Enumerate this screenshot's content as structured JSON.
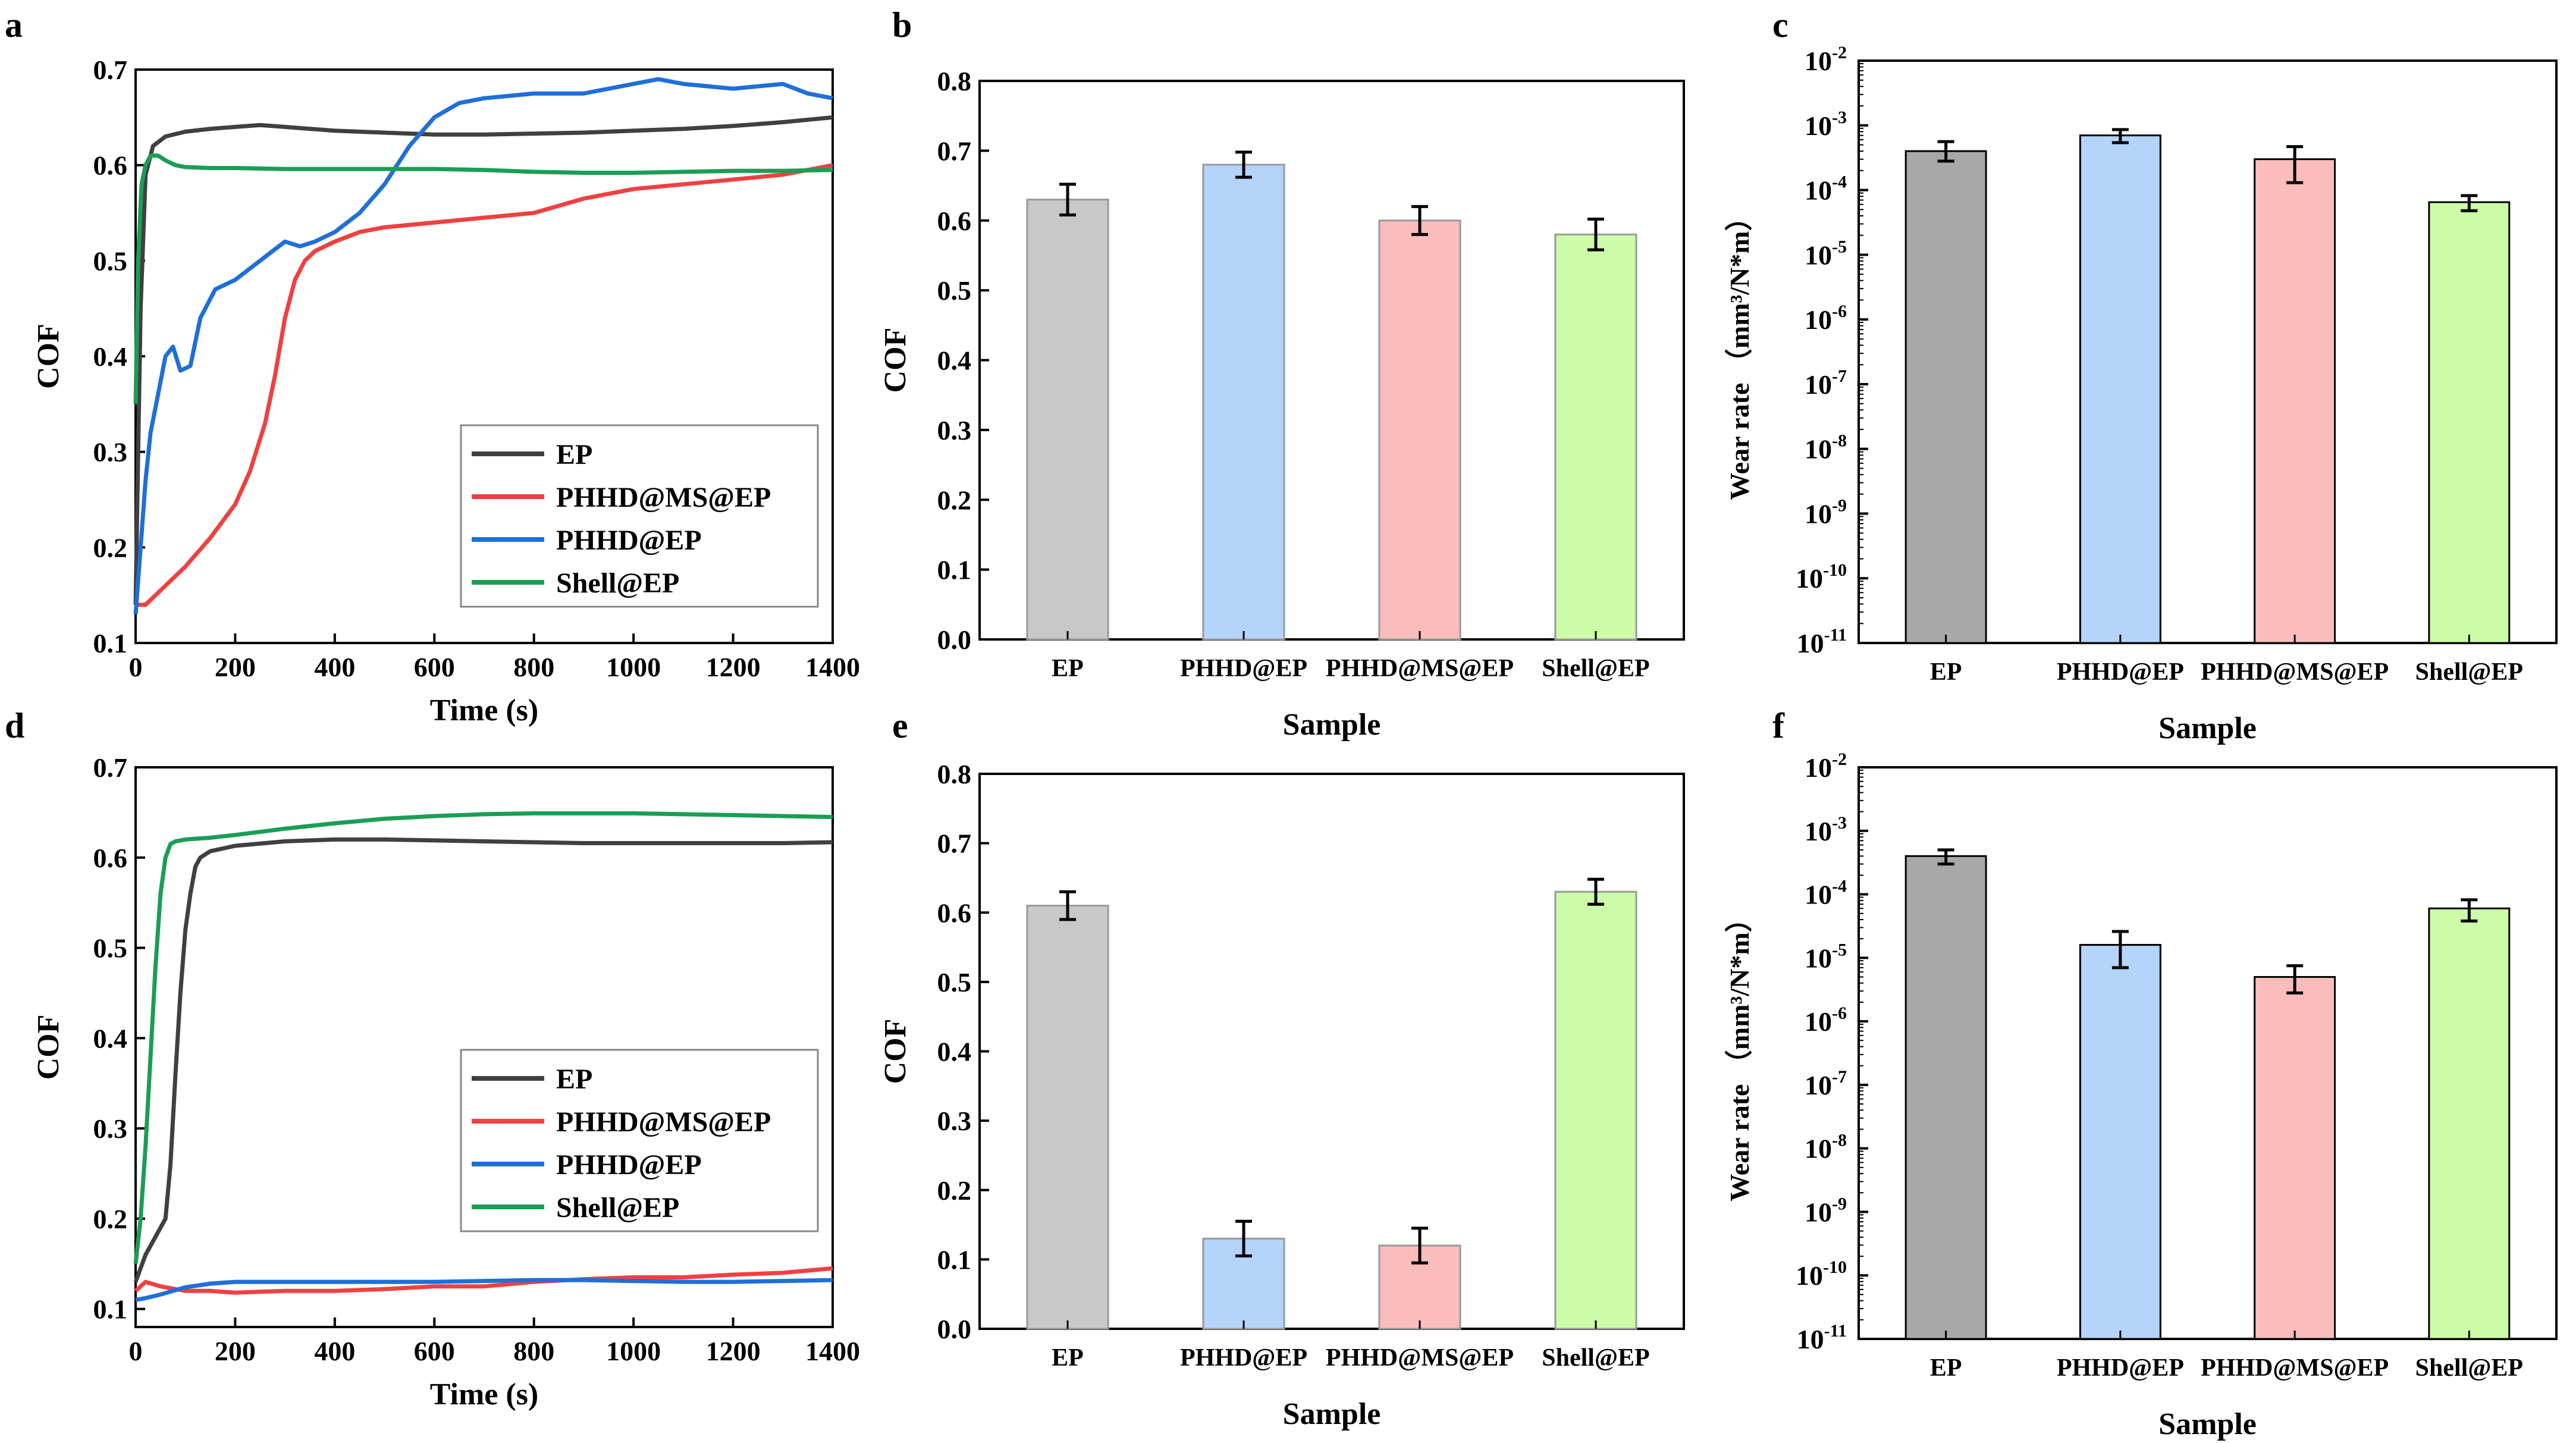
{
  "colors": {
    "EP": "#404040",
    "PHHD@MS@EP": "#f04040",
    "PHHD@EP": "#1e6fd9",
    "Shell@EP": "#1a9e55",
    "bar_EP": "#c8c8c8",
    "bar_PHHD@EP": "#b4d4fb",
    "bar_PHHD@MS@EP": "#fbbcbc",
    "bar_Shell@EP": "#ccfca8",
    "bar_wear_EP": "#a8a8a8",
    "bar_wear_PHHD@EP": "#b4d4fb",
    "bar_wear_PHHD@MS@EP": "#fbbcbc",
    "bar_wear_Shell@EP": "#ccfca8"
  },
  "chart_data": [
    {
      "panel": "a",
      "type": "line",
      "xlabel": "Time (s)",
      "ylabel": "COF",
      "xlim": [
        0,
        1400
      ],
      "ylim": [
        0.1,
        0.7
      ],
      "xticks": [
        0,
        200,
        400,
        600,
        800,
        1000,
        1200,
        1400
      ],
      "yticks": [
        0.1,
        0.2,
        0.3,
        0.4,
        0.5,
        0.6,
        0.7
      ],
      "legend_position": "bottom-right",
      "series": [
        {
          "name": "EP",
          "color_key": "EP",
          "x": [
            0,
            10,
            20,
            35,
            60,
            100,
            150,
            200,
            250,
            300,
            400,
            500,
            600,
            700,
            800,
            900,
            1000,
            1100,
            1200,
            1300,
            1400
          ],
          "y": [
            0.14,
            0.45,
            0.59,
            0.62,
            0.63,
            0.635,
            0.638,
            0.64,
            0.642,
            0.64,
            0.636,
            0.634,
            0.632,
            0.632,
            0.633,
            0.634,
            0.636,
            0.638,
            0.641,
            0.645,
            0.65
          ]
        },
        {
          "name": "PHHD@MS@EP",
          "color_key": "PHHD@MS@EP",
          "x": [
            0,
            20,
            50,
            100,
            150,
            200,
            230,
            260,
            280,
            300,
            320,
            340,
            360,
            380,
            400,
            450,
            500,
            600,
            700,
            800,
            900,
            1000,
            1100,
            1200,
            1300,
            1400
          ],
          "y": [
            0.14,
            0.14,
            0.155,
            0.18,
            0.21,
            0.245,
            0.28,
            0.33,
            0.38,
            0.44,
            0.48,
            0.5,
            0.51,
            0.515,
            0.52,
            0.53,
            0.535,
            0.54,
            0.545,
            0.55,
            0.565,
            0.575,
            0.58,
            0.585,
            0.59,
            0.6
          ]
        },
        {
          "name": "PHHD@EP",
          "color_key": "PHHD@EP",
          "x": [
            0,
            10,
            20,
            30,
            45,
            60,
            75,
            90,
            110,
            130,
            160,
            200,
            250,
            300,
            330,
            360,
            400,
            450,
            500,
            550,
            600,
            650,
            700,
            800,
            900,
            1000,
            1050,
            1100,
            1200,
            1300,
            1350,
            1400
          ],
          "y": [
            0.13,
            0.2,
            0.27,
            0.32,
            0.36,
            0.4,
            0.41,
            0.385,
            0.39,
            0.44,
            0.47,
            0.48,
            0.5,
            0.52,
            0.515,
            0.52,
            0.53,
            0.55,
            0.58,
            0.62,
            0.65,
            0.665,
            0.67,
            0.675,
            0.675,
            0.685,
            0.69,
            0.685,
            0.68,
            0.685,
            0.675,
            0.67
          ]
        },
        {
          "name": "Shell@EP",
          "color_key": "Shell@EP",
          "x": [
            0,
            5,
            12,
            20,
            30,
            45,
            60,
            80,
            100,
            150,
            200,
            300,
            400,
            500,
            600,
            700,
            800,
            900,
            1000,
            1100,
            1200,
            1300,
            1400
          ],
          "y": [
            0.35,
            0.5,
            0.58,
            0.6,
            0.61,
            0.61,
            0.605,
            0.6,
            0.598,
            0.597,
            0.597,
            0.596,
            0.596,
            0.596,
            0.596,
            0.595,
            0.593,
            0.592,
            0.592,
            0.593,
            0.594,
            0.594,
            0.595
          ]
        }
      ]
    },
    {
      "panel": "b",
      "type": "bar",
      "xlabel": "Sample",
      "ylabel": "COF",
      "ylim": [
        0,
        0.8
      ],
      "yticks": [
        0.0,
        0.1,
        0.2,
        0.3,
        0.4,
        0.5,
        0.6,
        0.7,
        0.8
      ],
      "categories": [
        "EP",
        "PHHD@EP",
        "PHHD@MS@EP",
        "Shell@EP"
      ],
      "values": [
        0.63,
        0.68,
        0.6,
        0.58
      ],
      "errors": [
        0.022,
        0.018,
        0.02,
        0.022
      ]
    },
    {
      "panel": "c",
      "type": "bar",
      "log_scale": true,
      "xlabel": "Sample",
      "ylabel": "Wear rate （mm³/N*m）",
      "ylim": [
        1e-11,
        0.01
      ],
      "ytick_exponents": [
        -11,
        -10,
        -9,
        -8,
        -7,
        -6,
        -5,
        -4,
        -3,
        -2
      ],
      "categories": [
        "EP",
        "PHHD@EP",
        "PHHD@MS@EP",
        "Shell@EP"
      ],
      "values": [
        0.0004,
        0.0007,
        0.0003,
        6.5e-05
      ],
      "error_low": [
        0.00028,
        0.00054,
        0.00013,
        4.8e-05
      ],
      "error_high": [
        0.00056,
        0.00086,
        0.00047,
        8.2e-05
      ]
    },
    {
      "panel": "d",
      "type": "line",
      "xlabel": "Time (s)",
      "ylabel": "COF",
      "xlim": [
        0,
        1400
      ],
      "ylim": [
        0.08,
        0.7
      ],
      "xticks": [
        0,
        200,
        400,
        600,
        800,
        1000,
        1200,
        1400
      ],
      "yticks": [
        0.1,
        0.2,
        0.3,
        0.4,
        0.5,
        0.6,
        0.7
      ],
      "legend_position": "bottom-right",
      "series": [
        {
          "name": "EP",
          "color_key": "EP",
          "x": [
            0,
            20,
            40,
            60,
            70,
            80,
            90,
            100,
            110,
            120,
            130,
            150,
            200,
            300,
            400,
            500,
            600,
            700,
            800,
            900,
            1000,
            1100,
            1200,
            1300,
            1400
          ],
          "y": [
            0.13,
            0.16,
            0.18,
            0.2,
            0.26,
            0.36,
            0.45,
            0.52,
            0.56,
            0.59,
            0.6,
            0.607,
            0.613,
            0.618,
            0.62,
            0.62,
            0.619,
            0.618,
            0.617,
            0.616,
            0.616,
            0.616,
            0.616,
            0.616,
            0.617
          ]
        },
        {
          "name": "PHHD@MS@EP",
          "color_key": "PHHD@MS@EP",
          "x": [
            0,
            20,
            50,
            100,
            150,
            200,
            300,
            400,
            500,
            600,
            700,
            800,
            900,
            1000,
            1100,
            1200,
            1300,
            1400
          ],
          "y": [
            0.12,
            0.13,
            0.125,
            0.12,
            0.12,
            0.118,
            0.12,
            0.12,
            0.122,
            0.125,
            0.125,
            0.13,
            0.133,
            0.135,
            0.135,
            0.138,
            0.14,
            0.145
          ]
        },
        {
          "name": "PHHD@EP",
          "color_key": "PHHD@EP",
          "x": [
            0,
            20,
            50,
            100,
            150,
            200,
            300,
            400,
            500,
            600,
            700,
            800,
            900,
            1000,
            1100,
            1200,
            1300,
            1400
          ],
          "y": [
            0.11,
            0.112,
            0.116,
            0.124,
            0.128,
            0.13,
            0.13,
            0.13,
            0.13,
            0.13,
            0.131,
            0.132,
            0.132,
            0.131,
            0.13,
            0.13,
            0.131,
            0.132
          ]
        },
        {
          "name": "Shell@EP",
          "color_key": "Shell@EP",
          "x": [
            0,
            10,
            20,
            30,
            40,
            50,
            60,
            70,
            80,
            100,
            150,
            200,
            300,
            400,
            500,
            600,
            700,
            800,
            900,
            1000,
            1100,
            1200,
            1300,
            1400
          ],
          "y": [
            0.15,
            0.2,
            0.28,
            0.38,
            0.48,
            0.56,
            0.6,
            0.615,
            0.618,
            0.62,
            0.622,
            0.625,
            0.632,
            0.638,
            0.643,
            0.646,
            0.648,
            0.649,
            0.649,
            0.649,
            0.648,
            0.647,
            0.646,
            0.645
          ]
        }
      ]
    },
    {
      "panel": "e",
      "type": "bar",
      "xlabel": "Sample",
      "ylabel": "COF",
      "ylim": [
        0,
        0.8
      ],
      "yticks": [
        0.0,
        0.1,
        0.2,
        0.3,
        0.4,
        0.5,
        0.6,
        0.7,
        0.8
      ],
      "categories": [
        "EP",
        "PHHD@EP",
        "PHHD@MS@EP",
        "Shell@EP"
      ],
      "values": [
        0.61,
        0.13,
        0.12,
        0.63
      ],
      "errors": [
        0.02,
        0.025,
        0.025,
        0.018
      ]
    },
    {
      "panel": "f",
      "type": "bar",
      "log_scale": true,
      "xlabel": "Sample",
      "ylabel": "Wear rate （mm³/N*m）",
      "ylim": [
        1e-11,
        0.01
      ],
      "ytick_exponents": [
        -11,
        -10,
        -9,
        -8,
        -7,
        -6,
        -5,
        -4,
        -3,
        -2
      ],
      "categories": [
        "EP",
        "PHHD@EP",
        "PHHD@MS@EP",
        "Shell@EP"
      ],
      "values": [
        0.0004,
        1.6e-05,
        5e-06,
        6e-05
      ],
      "error_low": [
        0.0003,
        7e-06,
        2.8e-06,
        3.8e-05
      ],
      "error_high": [
        0.0005,
        2.6e-05,
        7.5e-06,
        8.2e-05
      ]
    }
  ]
}
